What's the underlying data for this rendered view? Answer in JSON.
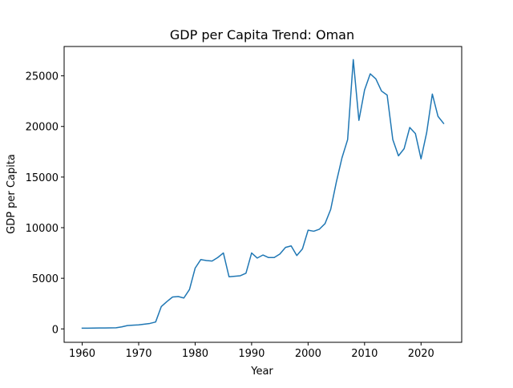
{
  "chart_data": {
    "type": "line",
    "title": "GDP per Capita Trend: Oman",
    "xlabel": "Year",
    "ylabel": "GDP per Capita",
    "xlim": [
      1956.8,
      2027.2
    ],
    "ylim": [
      -1325,
      27900
    ],
    "grid": false,
    "legend": "none",
    "x_ticks": [
      1960,
      1970,
      1980,
      1990,
      2000,
      2010,
      2020
    ],
    "x_tick_labels": [
      "1960",
      "1970",
      "1980",
      "1990",
      "2000",
      "2010",
      "2020"
    ],
    "y_ticks": [
      0,
      5000,
      10000,
      15000,
      20000,
      25000
    ],
    "y_tick_labels": [
      "0",
      "5000",
      "10000",
      "15000",
      "20000",
      "25000"
    ],
    "series": [
      {
        "color": "#1f77b4",
        "x": [
          1960,
          1961,
          1962,
          1963,
          1964,
          1965,
          1966,
          1967,
          1968,
          1969,
          1970,
          1971,
          1972,
          1973,
          1974,
          1975,
          1976,
          1977,
          1978,
          1979,
          1980,
          1981,
          1982,
          1983,
          1984,
          1985,
          1986,
          1987,
          1988,
          1989,
          1990,
          1991,
          1992,
          1993,
          1994,
          1995,
          1996,
          1997,
          1998,
          1999,
          2000,
          2001,
          2002,
          2003,
          2004,
          2005,
          2006,
          2007,
          2008,
          2009,
          2010,
          2011,
          2012,
          2013,
          2014,
          2015,
          2016,
          2017,
          2018,
          2019,
          2020,
          2021,
          2022,
          2023,
          2024
        ],
        "y": [
          70,
          75,
          85,
          90,
          95,
          100,
          110,
          200,
          330,
          370,
          400,
          470,
          540,
          680,
          2200,
          2700,
          3150,
          3200,
          3050,
          3900,
          6000,
          6850,
          6750,
          6700,
          7050,
          7500,
          5150,
          5200,
          5250,
          5500,
          7500,
          7000,
          7300,
          7050,
          7050,
          7400,
          8050,
          8200,
          7250,
          7900,
          9750,
          9650,
          9850,
          10400,
          11800,
          14500,
          16900,
          18700,
          26600,
          20600,
          23600,
          25200,
          24700,
          23500,
          23100,
          18700,
          17100,
          17800,
          19900,
          19300,
          16800,
          19400,
          23200,
          21000,
          20300
        ]
      }
    ]
  }
}
